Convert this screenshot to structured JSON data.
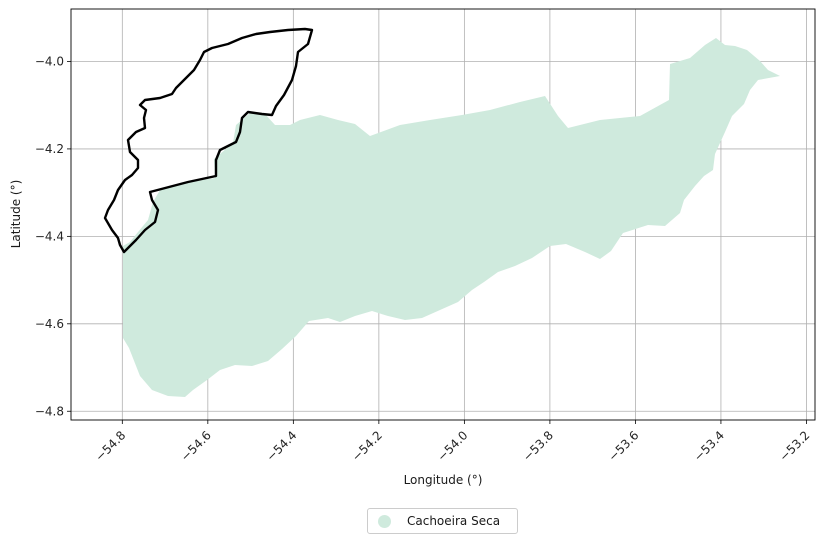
{
  "map": {
    "xlabel": "Longitude (°)",
    "ylabel": "Latitude (°)",
    "xlim": [
      -54.92,
      -53.18
    ],
    "ylim": [
      -4.82,
      -3.88
    ],
    "x_ticks": [
      -54.8,
      -54.6,
      -54.4,
      -54.2,
      -54.0,
      -53.8,
      -53.6,
      -53.4,
      -53.2
    ],
    "y_ticks": [
      -4.8,
      -4.6,
      -4.4,
      -4.2,
      -4.0
    ],
    "grid": true,
    "fill_color": "#cfeadd",
    "outline_color": "#000000",
    "legend_placement": "bottom-center"
  },
  "legend": {
    "items": [
      {
        "label": "Cachoeira Seca",
        "color": "#cfeadd"
      }
    ]
  }
}
